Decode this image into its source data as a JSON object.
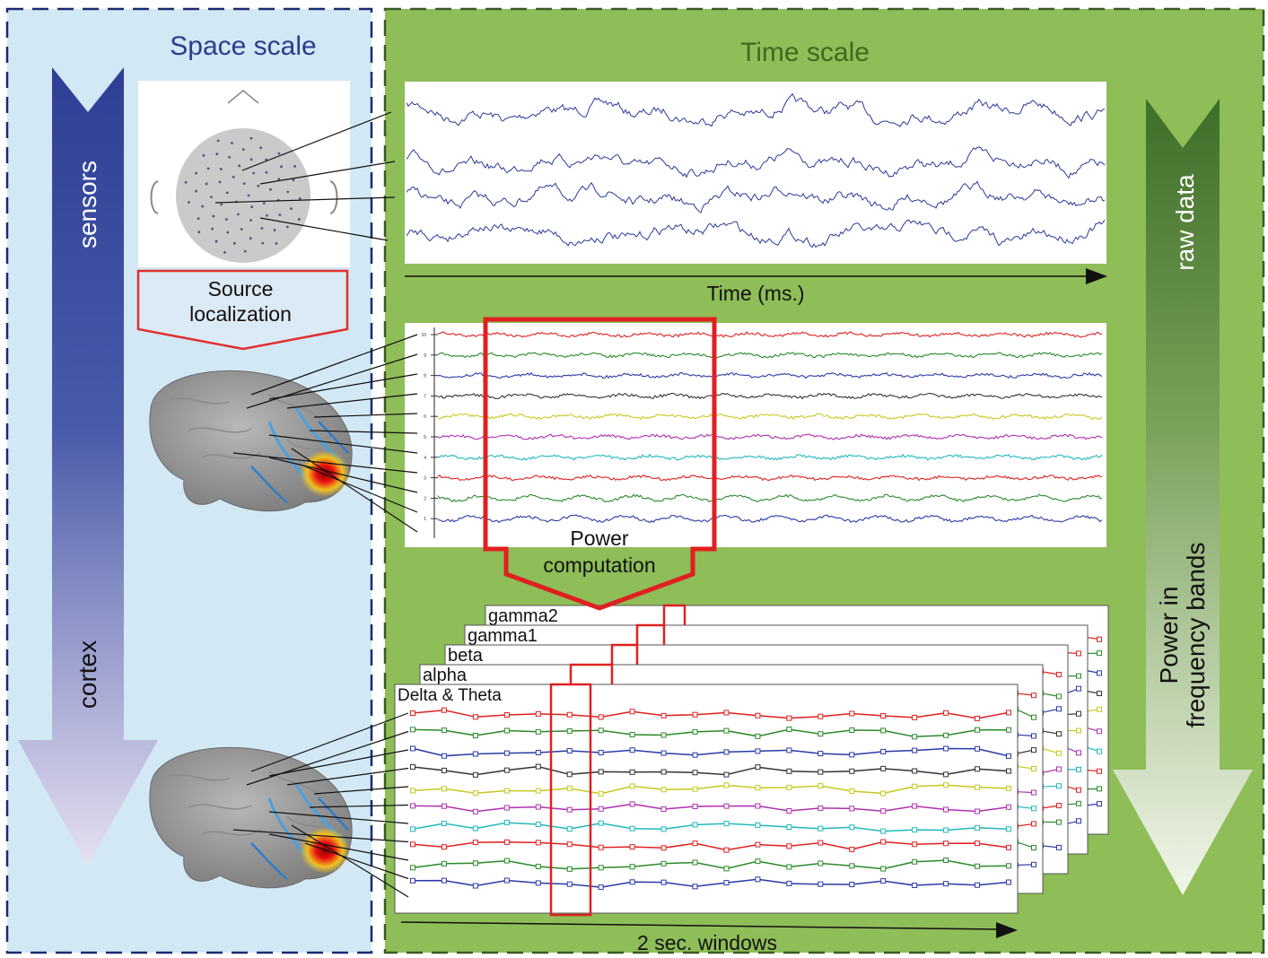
{
  "panels": {
    "space": {
      "title": "Space scale",
      "bg": "#d3e8f5",
      "title_color": "#2e3a8c"
    },
    "time": {
      "title": "Time scale",
      "bg": "#8fbd58",
      "title_color": "#3e6b1c"
    }
  },
  "arrows": {
    "left_top": "sensors",
    "left_bottom": "cortex",
    "right_top": "raw data",
    "right_bottom_line1": "Power in",
    "right_bottom_line2": "frequency bands"
  },
  "source_box": {
    "line1": "Source",
    "line2": "localization",
    "border": "#e03030"
  },
  "time_axis_label": "Time (ms.)",
  "power_box": {
    "line1": "Power",
    "line2": "computation",
    "color": "#e02020"
  },
  "bands": [
    "gamma2",
    "gamma1",
    "beta",
    "alpha",
    "Delta & Theta"
  ],
  "windows_label": "2 sec. windows",
  "trace_colors": [
    "#e02020",
    "#2a8a2a",
    "#2a3aa8",
    "#333333",
    "#c8c820",
    "#b030b0",
    "#20b8c0",
    "#e02020",
    "#2a8a2a",
    "#2a3aa8"
  ],
  "source_channel_ticks": [
    "10",
    "9",
    "8",
    "7",
    "6",
    "5",
    "4",
    "3",
    "2",
    "1"
  ]
}
